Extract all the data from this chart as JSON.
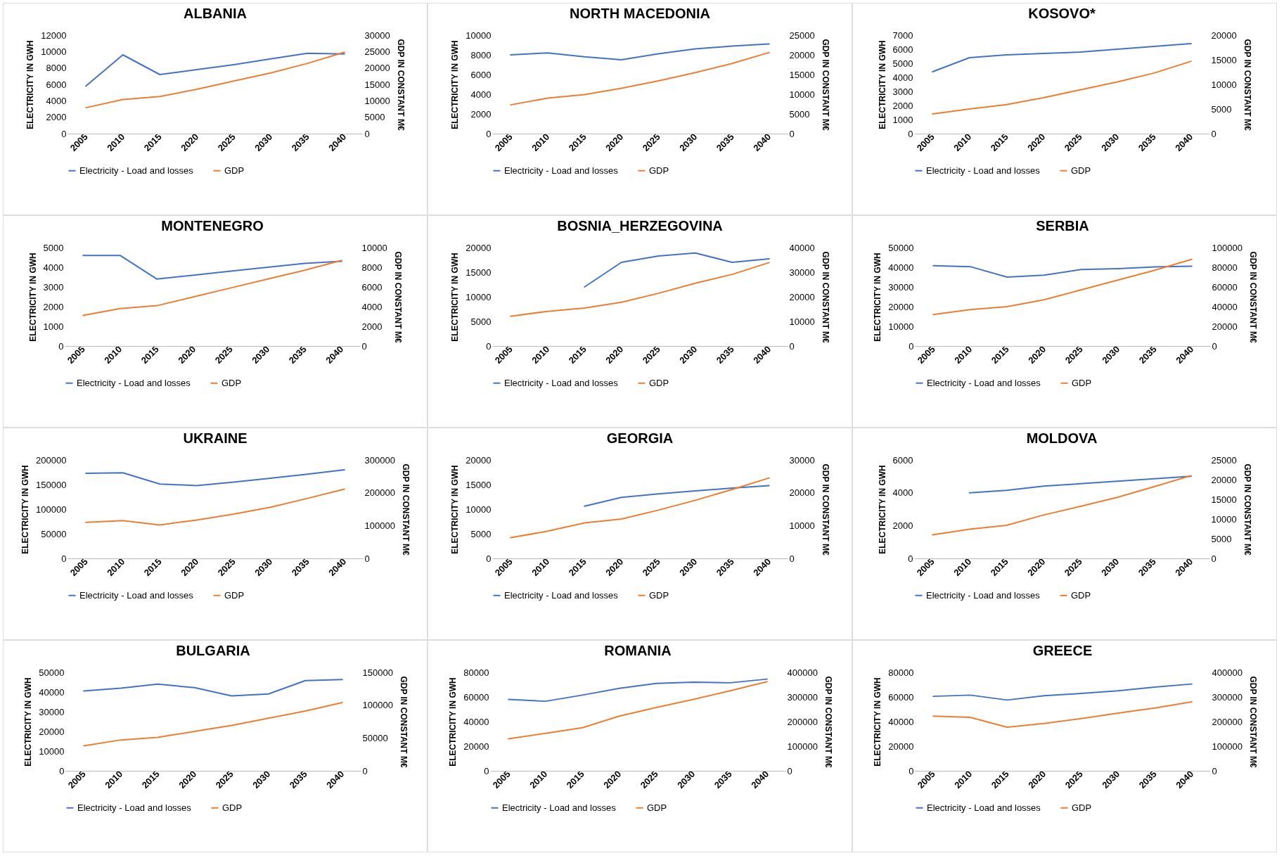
{
  "chart_data": [
    {
      "type": "line",
      "title": "ALBANIA",
      "categories": [
        "2005",
        "2010",
        "2015",
        "2020",
        "2025",
        "2030",
        "2035",
        "2040"
      ],
      "ylabel": "ELECTRICITY IN GWH",
      "y2label": "GDP IN CONSTANT M€",
      "ylim": [
        0,
        12000
      ],
      "yticks": [
        0,
        2000,
        4000,
        6000,
        8000,
        10000,
        12000
      ],
      "y2lim": [
        0,
        30000
      ],
      "y2ticks": [
        0,
        5000,
        10000,
        15000,
        20000,
        25000,
        30000
      ],
      "legend": "bottom",
      "series": [
        {
          "name": "Electricity - Load and losses",
          "color": "#4472c4",
          "values": [
            5800,
            9600,
            7200,
            7800,
            8400,
            9100,
            9800,
            9700
          ]
        },
        {
          "name": "GDP",
          "color": "#ed7d31",
          "axis": "y2",
          "values": [
            7900,
            10400,
            11300,
            13500,
            16000,
            18500,
            21400,
            24800
          ]
        }
      ]
    },
    {
      "type": "line",
      "title": "NORTH MACEDONIA",
      "categories": [
        "2005",
        "2010",
        "2015",
        "2020",
        "2025",
        "2030",
        "2035",
        "2040"
      ],
      "ylabel": "ELECTRICITY IN GWH",
      "y2label": "GDP IN CONSTANT M€",
      "ylim": [
        0,
        10000
      ],
      "yticks": [
        0,
        2000,
        4000,
        6000,
        8000,
        10000
      ],
      "y2lim": [
        0,
        25000
      ],
      "y2ticks": [
        0,
        5000,
        10000,
        15000,
        20000,
        25000
      ],
      "legend": "bottom",
      "series": [
        {
          "name": "Electricity - Load and losses",
          "color": "#4472c4",
          "values": [
            8000,
            8200,
            7800,
            7500,
            8100,
            8600,
            8900,
            9100
          ]
        },
        {
          "name": "GDP",
          "color": "#ed7d31",
          "axis": "y2",
          "values": [
            7300,
            9000,
            9900,
            11500,
            13400,
            15500,
            17800,
            20600
          ]
        }
      ]
    },
    {
      "type": "line",
      "title": "KOSOVO*",
      "categories": [
        "2005",
        "2010",
        "2015",
        "2020",
        "2025",
        "2030",
        "2035",
        "2040"
      ],
      "ylabel": "ELECTRICITY IN GWH",
      "y2label": "GDP IN CONSTANT M€",
      "ylim": [
        0,
        7000
      ],
      "yticks": [
        0,
        1000,
        2000,
        3000,
        4000,
        5000,
        6000,
        7000
      ],
      "y2lim": [
        0,
        20000
      ],
      "y2ticks": [
        0,
        5000,
        10000,
        15000,
        20000
      ],
      "legend": "bottom",
      "series": [
        {
          "name": "Electricity - Load and losses",
          "color": "#4472c4",
          "values": [
            4400,
            5400,
            5600,
            5700,
            5800,
            6000,
            6200,
            6400
          ]
        },
        {
          "name": "GDP",
          "color": "#ed7d31",
          "axis": "y2",
          "values": [
            4000,
            5000,
            5900,
            7300,
            8900,
            10500,
            12300,
            14700
          ]
        }
      ]
    },
    {
      "type": "line",
      "title": "MONTENEGRO",
      "categories": [
        "2005",
        "2010",
        "2015",
        "2020",
        "2025",
        "2030",
        "2035",
        "2040"
      ],
      "ylabel": "ELECTRICITY IN GWH",
      "y2label": "GDP IN CONSTANT M€",
      "ylim": [
        0,
        5000
      ],
      "yticks": [
        0,
        1000,
        2000,
        3000,
        4000,
        5000
      ],
      "y2lim": [
        0,
        10000
      ],
      "y2ticks": [
        0,
        2000,
        4000,
        6000,
        8000,
        10000
      ],
      "legend": "bottom",
      "series": [
        {
          "name": "Electricity - Load and losses",
          "color": "#4472c4",
          "values": [
            4600,
            4600,
            3400,
            3600,
            3800,
            4000,
            4200,
            4300
          ]
        },
        {
          "name": "GDP",
          "color": "#ed7d31",
          "axis": "y2",
          "values": [
            3100,
            3800,
            4100,
            5000,
            5900,
            6800,
            7700,
            8700
          ]
        }
      ]
    },
    {
      "type": "line",
      "title": "BOSNIA_HERZEGOVINA",
      "categories": [
        "2005",
        "2010",
        "2015",
        "2020",
        "2025",
        "2030",
        "2035",
        "2040"
      ],
      "ylabel": "ELECTRICITY IN GWH",
      "y2label": "GDP IN CONSTANT M€",
      "ylim": [
        0,
        20000
      ],
      "yticks": [
        0,
        5000,
        10000,
        15000,
        20000
      ],
      "y2lim": [
        0,
        40000
      ],
      "y2ticks": [
        0,
        10000,
        20000,
        30000,
        40000
      ],
      "legend": "bottom",
      "series": [
        {
          "name": "Electricity - Load and losses",
          "color": "#4472c4",
          "values": [
            null,
            null,
            12000,
            17000,
            18300,
            18900,
            17000,
            17700
          ]
        },
        {
          "name": "GDP",
          "color": "#ed7d31",
          "axis": "y2",
          "values": [
            12100,
            14100,
            15400,
            17800,
            21400,
            25500,
            29100,
            33900
          ]
        }
      ]
    },
    {
      "type": "line",
      "title": "SERBIA",
      "categories": [
        "2005",
        "2010",
        "2015",
        "2020",
        "2025",
        "2030",
        "2035",
        "2040"
      ],
      "ylabel": "ELECTRICITY IN GWH",
      "y2label": "GDP IN CONSTANT M€",
      "ylim": [
        0,
        50000
      ],
      "yticks": [
        0,
        10000,
        20000,
        30000,
        40000,
        50000
      ],
      "y2lim": [
        0,
        100000
      ],
      "y2ticks": [
        0,
        20000,
        40000,
        60000,
        80000,
        100000
      ],
      "legend": "bottom",
      "series": [
        {
          "name": "Electricity - Load and losses",
          "color": "#4472c4",
          "values": [
            40800,
            40300,
            35000,
            36000,
            38800,
            39300,
            40200,
            40500
          ]
        },
        {
          "name": "GDP",
          "color": "#ed7d31",
          "axis": "y2",
          "values": [
            32000,
            37000,
            40000,
            47000,
            57000,
            67000,
            77000,
            88000
          ]
        }
      ]
    },
    {
      "type": "line",
      "title": "UKRAINE",
      "categories": [
        "2005",
        "2010",
        "2015",
        "2020",
        "2025",
        "2030",
        "2035",
        "2040"
      ],
      "ylabel": "ELECTRICITY IN GWH",
      "y2label": "GDP IN CONSTANT M€",
      "ylim": [
        0,
        200000
      ],
      "yticks": [
        0,
        50000,
        100000,
        150000,
        200000
      ],
      "y2lim": [
        0,
        300000
      ],
      "y2ticks": [
        0,
        100000,
        200000,
        300000
      ],
      "legend": "bottom",
      "series": [
        {
          "name": "Electricity - Load and losses",
          "color": "#4472c4",
          "values": [
            173000,
            174000,
            151000,
            148000,
            155000,
            163000,
            171000,
            180000
          ]
        },
        {
          "name": "GDP",
          "color": "#ed7d31",
          "axis": "y2",
          "values": [
            110000,
            115000,
            102000,
            117000,
            135000,
            156000,
            183000,
            211000
          ]
        }
      ]
    },
    {
      "type": "line",
      "title": "GEORGIA",
      "categories": [
        "2005",
        "2010",
        "2015",
        "2020",
        "2025",
        "2030",
        "2035",
        "2040"
      ],
      "ylabel": "ELECTRICITY IN GWH",
      "y2label": "GDP IN CONSTANT M€",
      "ylim": [
        0,
        20000
      ],
      "yticks": [
        0,
        5000,
        10000,
        15000,
        20000
      ],
      "y2lim": [
        0,
        30000
      ],
      "y2ticks": [
        0,
        10000,
        20000,
        30000
      ],
      "legend": "bottom",
      "series": [
        {
          "name": "Electricity - Load and losses",
          "color": "#4472c4",
          "values": [
            null,
            null,
            10600,
            12400,
            13100,
            13700,
            14300,
            14800
          ]
        },
        {
          "name": "GDP",
          "color": "#ed7d31",
          "axis": "y2",
          "values": [
            6300,
            8300,
            10800,
            12000,
            14700,
            17700,
            21000,
            24500
          ]
        }
      ]
    },
    {
      "type": "line",
      "title": "MOLDOVA",
      "categories": [
        "2005",
        "2010",
        "2015",
        "2020",
        "2025",
        "2030",
        "2035",
        "2040"
      ],
      "ylabel": "ELECTRICITY IN GWH",
      "y2label": "GDP IN CONSTANT M€",
      "ylim": [
        0,
        6000
      ],
      "yticks": [
        0,
        2000,
        4000,
        6000
      ],
      "y2lim": [
        0,
        25000
      ],
      "y2ticks": [
        0,
        5000,
        10000,
        15000,
        20000,
        25000
      ],
      "legend": "bottom",
      "series": [
        {
          "name": "Electricity - Load and losses",
          "color": "#4472c4",
          "values": [
            null,
            4000,
            4150,
            4400,
            4550,
            4700,
            4850,
            5000
          ]
        },
        {
          "name": "GDP",
          "color": "#ed7d31",
          "axis": "y2",
          "values": [
            6000,
            7400,
            8400,
            11000,
            13200,
            15500,
            18200,
            21000
          ]
        }
      ]
    },
    {
      "type": "line",
      "title": "BULGARIA",
      "categories": [
        "2005",
        "2010",
        "2015",
        "2020",
        "2025",
        "2030",
        "2035",
        "2040"
      ],
      "ylabel": "ELECTRICITY IN GWH",
      "y2label": "GDP IN CONSTANT M€",
      "ylim": [
        0,
        50000
      ],
      "yticks": [
        0,
        10000,
        20000,
        30000,
        40000,
        50000
      ],
      "y2lim": [
        0,
        150000
      ],
      "y2ticks": [
        0,
        50000,
        100000,
        150000
      ],
      "legend": "bottom",
      "series": [
        {
          "name": "Electricity - Load and losses",
          "color": "#4472c4",
          "values": [
            40500,
            42000,
            44000,
            42200,
            38000,
            39000,
            45800,
            46300
          ]
        },
        {
          "name": "GDP",
          "color": "#ed7d31",
          "axis": "y2",
          "values": [
            38000,
            47000,
            51000,
            60000,
            69000,
            80000,
            91000,
            104000
          ]
        }
      ]
    },
    {
      "type": "line",
      "title": "ROMANIA",
      "categories": [
        "2005",
        "2010",
        "2015",
        "2020",
        "2025",
        "2030",
        "2035",
        "2040"
      ],
      "ylabel": "ELECTRICITY IN GWH",
      "y2label": "GDP IN CONSTANT M€",
      "ylim": [
        0,
        80000
      ],
      "yticks": [
        0,
        20000,
        40000,
        60000,
        80000
      ],
      "y2lim": [
        0,
        400000
      ],
      "y2ticks": [
        0,
        100000,
        200000,
        300000,
        400000
      ],
      "legend": "bottom",
      "series": [
        {
          "name": "Electricity - Load and losses",
          "color": "#4472c4",
          "values": [
            58000,
            56500,
            61500,
            67000,
            71000,
            72000,
            71500,
            74500
          ]
        },
        {
          "name": "GDP",
          "color": "#ed7d31",
          "axis": "y2",
          "values": [
            130000,
            152000,
            175000,
            222000,
            257000,
            290000,
            325000,
            362000
          ]
        }
      ]
    },
    {
      "type": "line",
      "title": "GREECE",
      "categories": [
        "2005",
        "2010",
        "2015",
        "2020",
        "2025",
        "2030",
        "2035",
        "2040"
      ],
      "ylabel": "ELECTRICITY IN GWH",
      "y2label": "GDP IN CONSTANT M€",
      "ylim": [
        0,
        80000
      ],
      "yticks": [
        0,
        20000,
        40000,
        60000,
        80000
      ],
      "y2lim": [
        0,
        400000
      ],
      "y2ticks": [
        0,
        100000,
        200000,
        300000,
        400000
      ],
      "legend": "bottom",
      "series": [
        {
          "name": "Electricity - Load and losses",
          "color": "#4472c4",
          "values": [
            60500,
            61500,
            57500,
            61000,
            62800,
            65000,
            68000,
            70500
          ]
        },
        {
          "name": "GDP",
          "color": "#ed7d31",
          "axis": "y2",
          "values": [
            222000,
            217000,
            177000,
            192000,
            212000,
            234000,
            255000,
            280000
          ]
        }
      ]
    }
  ]
}
